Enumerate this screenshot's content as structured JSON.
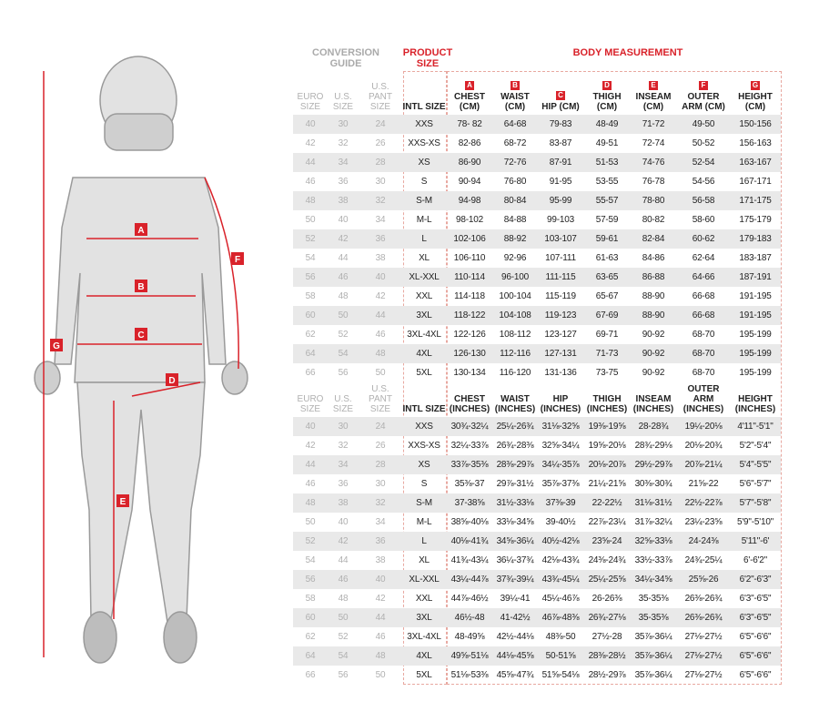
{
  "figure": {
    "labels": [
      "A",
      "B",
      "C",
      "D",
      "E",
      "F",
      "G"
    ],
    "arrow_color": "#d9222a"
  },
  "titles": {
    "conversion": "CONVERSION GUIDE",
    "product": "PRODUCT SIZE",
    "body": "BODY MEASUREMENT"
  },
  "colors": {
    "accent": "#d9222a",
    "shade": "#e9e9e9"
  },
  "cm_headers": {
    "euro": "EURO SIZE",
    "us": "U.S. SIZE",
    "pant": "U.S. PANT SIZE",
    "intl": "INTL SIZE",
    "cols": [
      {
        "badge": "A",
        "label": "CHEST (CM)"
      },
      {
        "badge": "B",
        "label": "WAIST (CM)"
      },
      {
        "badge": "C",
        "label": "HIP (CM)"
      },
      {
        "badge": "D",
        "label": "THIGH (CM)"
      },
      {
        "badge": "E",
        "label": "INSEAM (CM)"
      },
      {
        "badge": "F",
        "label": "OUTER ARM (CM)"
      },
      {
        "badge": "G",
        "label": "HEIGHT (CM)"
      }
    ]
  },
  "cm_rows": [
    [
      "40",
      "30",
      "24",
      "XXS",
      "78- 82",
      "64-68",
      "79-83",
      "48-49",
      "71-72",
      "49-50",
      "150-156"
    ],
    [
      "42",
      "32",
      "26",
      "XXS-XS",
      "82-86",
      "68-72",
      "83-87",
      "49-51",
      "72-74",
      "50-52",
      "156-163"
    ],
    [
      "44",
      "34",
      "28",
      "XS",
      "86-90",
      "72-76",
      "87-91",
      "51-53",
      "74-76",
      "52-54",
      "163-167"
    ],
    [
      "46",
      "36",
      "30",
      "S",
      "90-94",
      "76-80",
      "91-95",
      "53-55",
      "76-78",
      "54-56",
      "167-171"
    ],
    [
      "48",
      "38",
      "32",
      "S-M",
      "94-98",
      "80-84",
      "95-99",
      "55-57",
      "78-80",
      "56-58",
      "171-175"
    ],
    [
      "50",
      "40",
      "34",
      "M-L",
      "98-102",
      "84-88",
      "99-103",
      "57-59",
      "80-82",
      "58-60",
      "175-179"
    ],
    [
      "52",
      "42",
      "36",
      "L",
      "102-106",
      "88-92",
      "103-107",
      "59-61",
      "82-84",
      "60-62",
      "179-183"
    ],
    [
      "54",
      "44",
      "38",
      "XL",
      "106-110",
      "92-96",
      "107-111",
      "61-63",
      "84-86",
      "62-64",
      "183-187"
    ],
    [
      "56",
      "46",
      "40",
      "XL-XXL",
      "110-114",
      "96-100",
      "111-115",
      "63-65",
      "86-88",
      "64-66",
      "187-191"
    ],
    [
      "58",
      "48",
      "42",
      "XXL",
      "114-118",
      "100-104",
      "115-119",
      "65-67",
      "88-90",
      "66-68",
      "191-195"
    ],
    [
      "60",
      "50",
      "44",
      "3XL",
      "118-122",
      "104-108",
      "119-123",
      "67-69",
      "88-90",
      "66-68",
      "191-195"
    ],
    [
      "62",
      "52",
      "46",
      "3XL-4XL",
      "122-126",
      "108-112",
      "123-127",
      "69-71",
      "90-92",
      "68-70",
      "195-199"
    ],
    [
      "64",
      "54",
      "48",
      "4XL",
      "126-130",
      "112-116",
      "127-131",
      "71-73",
      "90-92",
      "68-70",
      "195-199"
    ],
    [
      "66",
      "56",
      "50",
      "5XL",
      "130-134",
      "116-120",
      "131-136",
      "73-75",
      "90-92",
      "68-70",
      "195-199"
    ]
  ],
  "in_headers": {
    "euro": "EURO SIZE",
    "us": "U.S. SIZE",
    "pant": "U.S. PANT SIZE",
    "intl": "INTL SIZE",
    "cols": [
      "CHEST (INCHES)",
      "WAIST (INCHES)",
      "HIP (INCHES)",
      "THIGH (INCHES)",
      "INSEAM (INCHES)",
      "OUTER ARM (INCHES)",
      "HEIGHT (INCHES)"
    ]
  },
  "in_rows": [
    [
      "40",
      "30",
      "24",
      "XXS",
      "30¾-32¼",
      "25¼-26¾",
      "31⅛-32⅝",
      "19⅜-19⅝",
      "28-28¾",
      "19¼-20⅛",
      "4'11\"-5'1\""
    ],
    [
      "42",
      "32",
      "26",
      "XXS-XS",
      "32¼-33⅞",
      "26¾-28⅜",
      "32⅝-34¼",
      "19⅝-20⅛",
      "28¾-29⅛",
      "20⅛-20¾",
      "5'2\"-5'4\""
    ],
    [
      "44",
      "34",
      "28",
      "XS",
      "33⅞-35⅜",
      "28⅜-29⅞",
      "34¼-35⅞",
      "20⅛-20⅞",
      "29½-29⅞",
      "20⅞-21¼",
      "5'4\"-5'5\""
    ],
    [
      "46",
      "36",
      "30",
      "S",
      "35⅜-37",
      "29⅞-31½",
      "35⅞-37⅜",
      "21¼-21⅝",
      "30⅜-30¾",
      "21⅝-22",
      "5'6\"-5'7\""
    ],
    [
      "48",
      "38",
      "32",
      "S-M",
      "37-38⅝",
      "31½-33⅛",
      "37⅜-39",
      "22-22½",
      "31⅛-31½",
      "22½-22⅞",
      "5'7\"-5'8\""
    ],
    [
      "50",
      "40",
      "34",
      "M-L",
      "38⅝-40⅛",
      "33⅛-34⅝",
      "39-40½",
      "22⅞-23¼",
      "31⅞-32¼",
      "23¼-23⅝",
      "5'9\"-5'10\""
    ],
    [
      "52",
      "42",
      "36",
      "L",
      "40⅛-41¾",
      "34⅝-36¼",
      "40½-42⅛",
      "23⅝-24",
      "32⅝-33⅛",
      "24-24⅜",
      "5'11\"-6'"
    ],
    [
      "54",
      "44",
      "38",
      "XL",
      "41¾-43¼",
      "36¼-37¾",
      "42⅛-43¾",
      "24⅜-24¾",
      "33½-33⅞",
      "24¾-25¼",
      "6'-6'2\""
    ],
    [
      "56",
      "46",
      "40",
      "XL-XXL",
      "43¼-44⅞",
      "37¾-39¼",
      "43¾-45¼",
      "25¼-25⅝",
      "34¼-34⅝",
      "25⅝-26",
      "6'2\"-6'3\""
    ],
    [
      "58",
      "48",
      "42",
      "XXL",
      "44⅞-46½",
      "39¼-41",
      "45¼-46⅞",
      "26-26⅜",
      "35-35⅜",
      "26⅜-26¾",
      "6'3\"-6'5\""
    ],
    [
      "60",
      "50",
      "44",
      "3XL",
      "46½-48",
      "41-42½",
      "46⅞-48⅜",
      "26¾-27⅛",
      "35-35⅜",
      "26⅜-26¾",
      "6'3\"-6'5\""
    ],
    [
      "62",
      "52",
      "46",
      "3XL-4XL",
      "48-49⅝",
      "42½-44⅛",
      "48⅜-50",
      "27½-28",
      "35⅞-36¼",
      "27⅛-27½",
      "6'5\"-6'6\""
    ],
    [
      "64",
      "54",
      "48",
      "4XL",
      "49⅝-51⅛",
      "44⅛-45⅝",
      "50-51⅝",
      "28⅜-28½",
      "35⅞-36¼",
      "27⅛-27½",
      "6'5\"-6'6\""
    ],
    [
      "66",
      "56",
      "50",
      "5XL",
      "51⅛-53⅜",
      "45⅝-47¾",
      "51⅝-54⅛",
      "28½-29⅞",
      "35⅞-36¼",
      "27⅛-27½",
      "6'5\"-6'6\""
    ]
  ]
}
